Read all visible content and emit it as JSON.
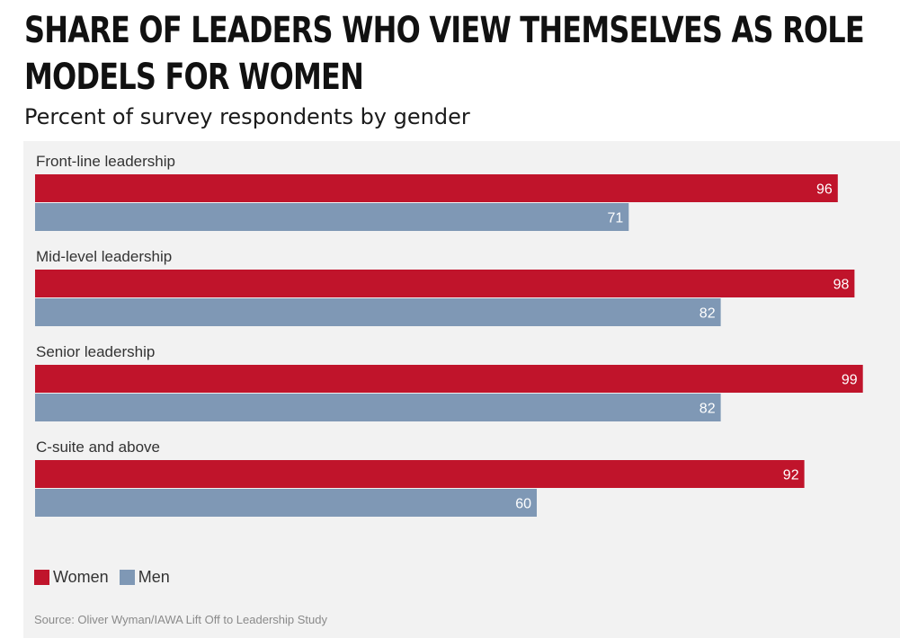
{
  "title_lines": [
    "SHARE OF LEADERS WHO VIEW THEMSELVES AS ROLE",
    "MODELS FOR WOMEN"
  ],
  "subtitle": "Percent of survey respondents by gender",
  "source": "Source: Oliver Wyman/IAWA Lift Off to Leadership Study",
  "colors": {
    "women": "#c0142b",
    "men": "#7f98b5",
    "panel": "#f2f2f2"
  },
  "chart_data": {
    "type": "bar",
    "orientation": "horizontal",
    "categories": [
      "Front-line leadership",
      "Mid-level leadership",
      "Senior leadership",
      "C-suite and above"
    ],
    "series": [
      {
        "name": "Women",
        "values": [
          96,
          98,
          99,
          92
        ]
      },
      {
        "name": "Men",
        "values": [
          71,
          82,
          82,
          60
        ]
      }
    ],
    "xlim": [
      0,
      100
    ],
    "grid": false,
    "legend_position": "bottom-left",
    "data_labels": true
  }
}
